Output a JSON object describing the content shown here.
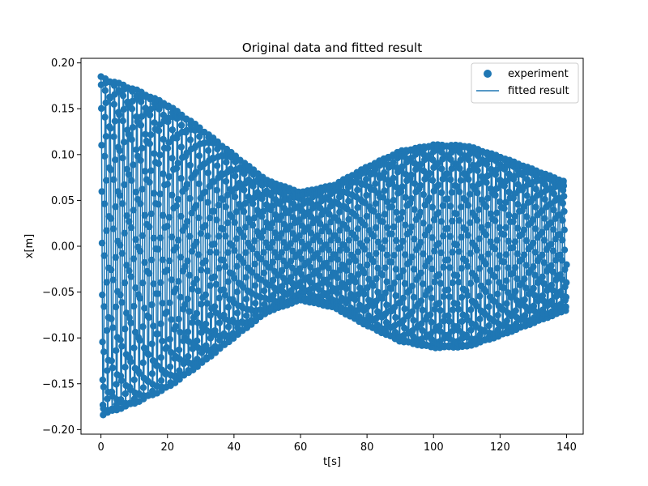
{
  "chart_data": {
    "type": "scatter",
    "title": "Original data and fitted result",
    "xlabel": "t[s]",
    "ylabel": "x[m]",
    "xlim": [
      -6,
      145
    ],
    "ylim": [
      -0.205,
      0.205
    ],
    "xticks": [
      0,
      20,
      40,
      60,
      80,
      100,
      120,
      140
    ],
    "xtick_labels": [
      "0",
      "20",
      "40",
      "60",
      "80",
      "100",
      "120",
      "140"
    ],
    "yticks": [
      -0.2,
      -0.15,
      -0.1,
      -0.05,
      0.0,
      0.05,
      0.1,
      0.15,
      0.2
    ],
    "ytick_labels": [
      "−0.20",
      "−0.15",
      "−0.10",
      "−0.05",
      "0.00",
      "0.05",
      "0.10",
      "0.15",
      "0.20"
    ],
    "grid": false,
    "legend_position": "top-right",
    "color": "#1f77b4",
    "series": [
      {
        "name": "experiment",
        "kind": "scatter",
        "t_start": 0,
        "t_end": 140,
        "n_points": 2100,
        "envelope_t": [
          0,
          10,
          20,
          30,
          40,
          50,
          60,
          70,
          80,
          90,
          100,
          110,
          120,
          130,
          140
        ],
        "envelope_amplitude": [
          0.185,
          0.172,
          0.155,
          0.129,
          0.1,
          0.072,
          0.059,
          0.067,
          0.087,
          0.104,
          0.111,
          0.11,
          0.098,
          0.084,
          0.07
        ],
        "period_s": 1.35
      },
      {
        "name": "fitted result",
        "kind": "line",
        "t_start": 0,
        "t_end": 140,
        "n_points": 2100,
        "envelope_t": [
          0,
          10,
          20,
          30,
          40,
          50,
          60,
          70,
          80,
          90,
          100,
          110,
          120,
          130,
          140
        ],
        "envelope_amplitude": [
          0.185,
          0.172,
          0.155,
          0.129,
          0.1,
          0.072,
          0.059,
          0.067,
          0.087,
          0.104,
          0.111,
          0.11,
          0.098,
          0.084,
          0.07
        ],
        "period_s": 1.35
      }
    ]
  }
}
